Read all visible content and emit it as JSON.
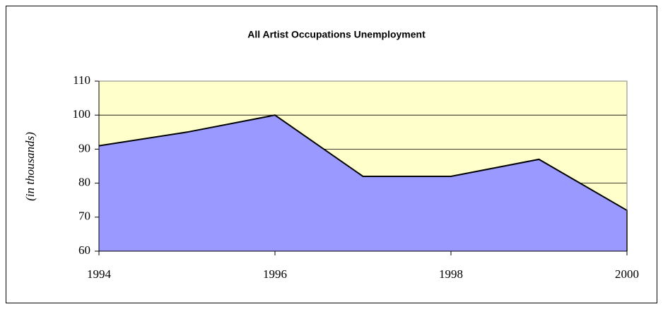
{
  "chart_data": {
    "type": "area",
    "title": "All Artist Occupations Unemployment",
    "y_label": "(in thousands)",
    "x": [
      1994,
      1995,
      1996,
      1997,
      1998,
      1999,
      2000
    ],
    "values": [
      91,
      95,
      100,
      82,
      82,
      87,
      72
    ],
    "color": "#9999ff",
    "background": "#ffffcc",
    "xlim": [
      1994,
      2000
    ],
    "xticks": [
      1994,
      1996,
      1998,
      2000
    ],
    "ylim": [
      60,
      110
    ],
    "yticks": [
      60,
      70,
      80,
      90,
      100,
      110
    ],
    "grid": true
  }
}
